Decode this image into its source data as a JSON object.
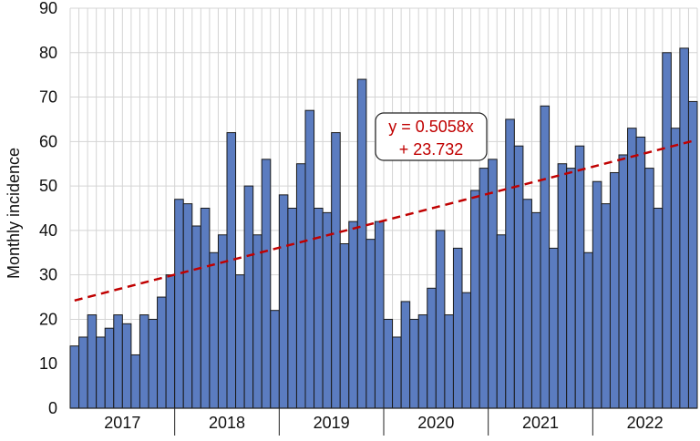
{
  "chart_data": {
    "type": "bar",
    "title": "",
    "xlabel": "",
    "ylabel": "Monthly incidence",
    "ylim": [
      0,
      90
    ],
    "yticks": [
      0,
      10,
      20,
      30,
      40,
      50,
      60,
      70,
      80,
      90
    ],
    "years": [
      "2017",
      "2018",
      "2019",
      "2020",
      "2021",
      "2022"
    ],
    "months_per_year": 12,
    "values": [
      14,
      16,
      21,
      16,
      18,
      21,
      19,
      12,
      21,
      20,
      25,
      30,
      47,
      46,
      41,
      45,
      35,
      39,
      62,
      30,
      50,
      39,
      56,
      22,
      48,
      45,
      55,
      67,
      45,
      44,
      62,
      37,
      42,
      74,
      38,
      42,
      20,
      16,
      24,
      20,
      21,
      27,
      40,
      21,
      36,
      26,
      49,
      54,
      56,
      39,
      65,
      59,
      47,
      44,
      68,
      36,
      55,
      54,
      59,
      35,
      51,
      46,
      53,
      57,
      63,
      61,
      54,
      45,
      80,
      63,
      81,
      69
    ],
    "grid": "vertical and horizontal gridlines",
    "bar_color": "#5b7cc0",
    "bar_edge_color": "#1a1a1a",
    "trendline": {
      "style": "dashed",
      "color": "#c00000",
      "slope": 0.5058,
      "intercept": 23.732,
      "label_line1": "y = 0.5058x",
      "label_line2": "+ 23.732"
    }
  }
}
